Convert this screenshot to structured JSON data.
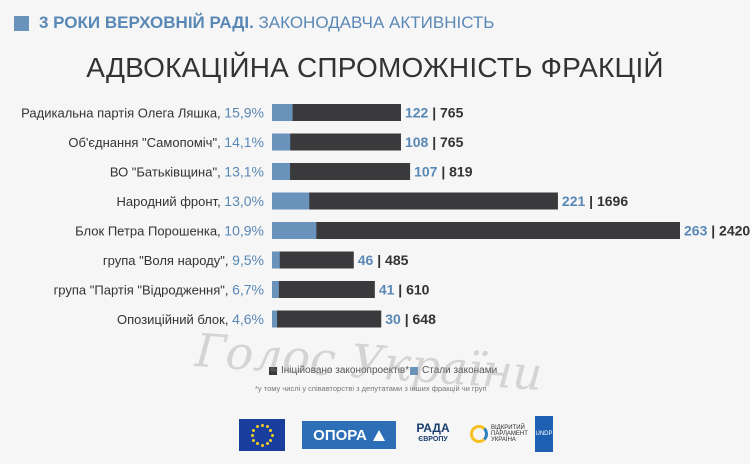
{
  "header": {
    "bold": "3 РОКИ ВЕРХОВНІЙ РАДІ.",
    "rest": " ЗАКОНОДАВЧА АКТИВНІСТЬ"
  },
  "title": "АДВОКАЦІЙНА СПРОМОЖНІСТЬ ФРАКЦІЙ",
  "colors": {
    "initiated": "#3a3a3c",
    "adopted": "#6a93bc",
    "pct": "#5a88b6",
    "label": "#333333"
  },
  "chart_data": {
    "type": "bar",
    "orientation": "horizontal",
    "stacked": "overlay",
    "title": "АДВОКАЦІЙНА СПРОМОЖНІСТЬ ФРАКЦІЙ",
    "xlim": [
      0,
      2420
    ],
    "grid": false,
    "legend": "bottom",
    "categories": [
      "Радикальна партія Олега Ляшка,",
      "Об'єднання \"Самопоміч\",",
      "ВО \"Батьківщина\",",
      "Народний фронт,",
      "Блок Петра Порошенка,",
      "група \"Воля народу\",",
      "група \"Партія \"Відродження\",",
      "Опозиційний блок,"
    ],
    "percent_labels": [
      "15,9%",
      "14,1%",
      "13,1%",
      "13,0%",
      "10,9%",
      "9,5%",
      "6,7%",
      "4,6%"
    ],
    "series": [
      {
        "name": "Ініційовано законопроектів*",
        "values": [
          765,
          765,
          819,
          1696,
          2420,
          485,
          610,
          648
        ]
      },
      {
        "name": "Стали законами",
        "values": [
          122,
          108,
          107,
          221,
          263,
          46,
          41,
          30
        ]
      }
    ]
  },
  "legend": {
    "initiated": "Ініційовано законопроектів*",
    "adopted": "Стали законами",
    "note": "*у тому числі у співавторстві з депутатами з інших фракцій чи груп"
  },
  "watermark": "Голос України",
  "logos": {
    "opora": "ОПОРА",
    "rada_top": "РАДА",
    "rada_bottom": "ЄВРОПУ",
    "parliament": "ВІДКРИТИЙ ПАРЛАМЕНТ УКРАЇНА",
    "undp": "UNDP"
  }
}
